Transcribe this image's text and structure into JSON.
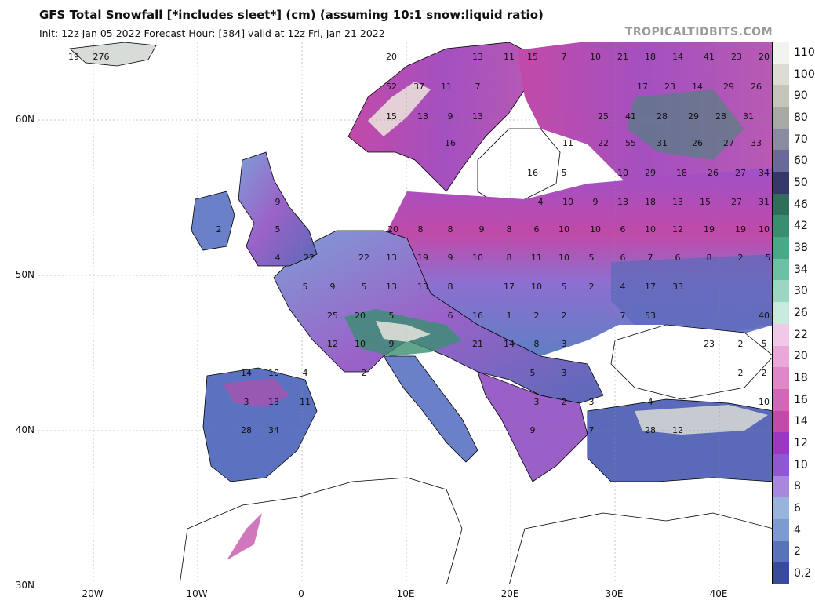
{
  "header": {
    "title": "GFS Total Snowfall [*includes sleet*] (cm) (assuming 10:1 snow:liquid ratio)",
    "subtitle": "Init: 12z Jan 05 2022   Forecast Hour: [384]   valid at 12z Fri, Jan 21 2022",
    "credit": "TROPICALTIDBITS.COM"
  },
  "axes": {
    "lat_labels": [
      "60N",
      "50N",
      "40N",
      "30N"
    ],
    "lon_labels": [
      "20W",
      "10W",
      "0",
      "10E",
      "20E",
      "30E",
      "40E"
    ]
  },
  "legend": {
    "labels": [
      "110",
      "100",
      "90",
      "80",
      "70",
      "60",
      "50",
      "46",
      "42",
      "38",
      "34",
      "30",
      "26",
      "22",
      "20",
      "18",
      "16",
      "14",
      "12",
      "10",
      "8",
      "6",
      "4",
      "2",
      "0.2"
    ],
    "colors": [
      "#f2f2ee",
      "#dcdcd4",
      "#c4c4ba",
      "#a8a8a4",
      "#8a8aa0",
      "#6a6a98",
      "#343868",
      "#2e6e5a",
      "#3a8e70",
      "#4aa886",
      "#6ec0a4",
      "#9ad6c0",
      "#c8eadc",
      "#f2c8e8",
      "#e8a8d8",
      "#de88c8",
      "#d068b8",
      "#c24aa8",
      "#9a38c0",
      "#9058d0",
      "#a888dc",
      "#98b4dc",
      "#7c9cd0",
      "#5874b8",
      "#3a4a9a"
    ]
  },
  "map": {
    "snow_values": [
      "19",
      "276",
      "52",
      "37",
      "11",
      "7",
      "15",
      "13",
      "9",
      "13",
      "16",
      "20",
      "13",
      "11",
      "15",
      "7",
      "10",
      "21",
      "18",
      "14",
      "41",
      "23",
      "20",
      "17",
      "23",
      "14",
      "29",
      "26",
      "25",
      "41",
      "28",
      "29",
      "28",
      "31",
      "11",
      "22",
      "55",
      "31",
      "26",
      "27",
      "33",
      "10",
      "29",
      "18",
      "26",
      "27",
      "34",
      "16",
      "5",
      "4",
      "10",
      "9",
      "13",
      "18",
      "13",
      "15",
      "27",
      "31",
      "9",
      "20",
      "8",
      "8",
      "9",
      "8",
      "6",
      "10",
      "10",
      "6",
      "10",
      "12",
      "19",
      "19",
      "10",
      "2",
      "5",
      "22",
      "22",
      "13",
      "19",
      "9",
      "10",
      "8",
      "11",
      "10",
      "5",
      "6",
      "7",
      "6",
      "8",
      "2",
      "5",
      "4",
      "5",
      "9",
      "5",
      "13",
      "13",
      "8",
      "17",
      "10",
      "5",
      "2",
      "4",
      "17",
      "33",
      "25",
      "20",
      "5",
      "6",
      "16",
      "1",
      "2",
      "2",
      "7",
      "53",
      "40",
      "12",
      "10",
      "9",
      "21",
      "14",
      "8",
      "3",
      "23",
      "2",
      "5",
      "14",
      "10",
      "4",
      "2",
      "5",
      "3",
      "2",
      "2",
      "3",
      "13",
      "11",
      "3",
      "2",
      "3",
      "4",
      "10",
      "28",
      "34",
      "9",
      "7",
      "28",
      "12"
    ]
  }
}
